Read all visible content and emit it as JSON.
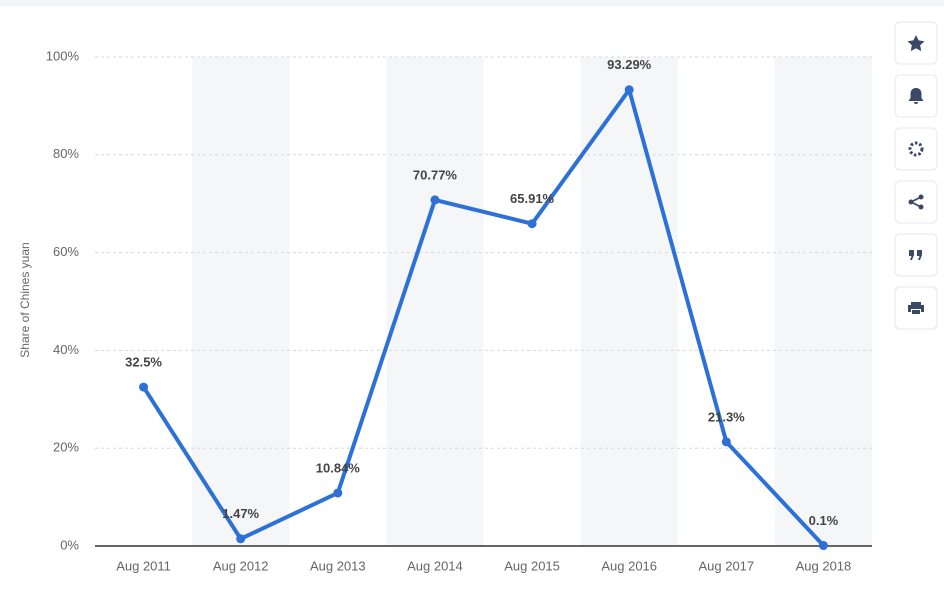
{
  "chart_data": {
    "type": "line",
    "y_label": "Share of Chines yuan",
    "categories": [
      "Aug 2011",
      "Aug 2012",
      "Aug 2013",
      "Aug 2014",
      "Aug 2015",
      "Aug 2016",
      "Aug 2017",
      "Aug 2018"
    ],
    "values": [
      32.5,
      1.47,
      10.84,
      70.77,
      65.91,
      93.29,
      21.3,
      0.1
    ],
    "value_labels": [
      "32.5%",
      "1.47%",
      "10.84%",
      "70.77%",
      "65.91%",
      "93.29%",
      "21.3%",
      "0.1%"
    ],
    "color": "#2c70d8",
    "ylim": [
      0,
      100
    ],
    "yticks": [
      {
        "value": 0,
        "label": "0%"
      },
      {
        "value": 20,
        "label": "20%"
      },
      {
        "value": 40,
        "label": "40%"
      },
      {
        "value": 60,
        "label": "60%"
      },
      {
        "value": 80,
        "label": "80%"
      },
      {
        "value": 100,
        "label": "100%"
      }
    ],
    "grid": true
  }
}
